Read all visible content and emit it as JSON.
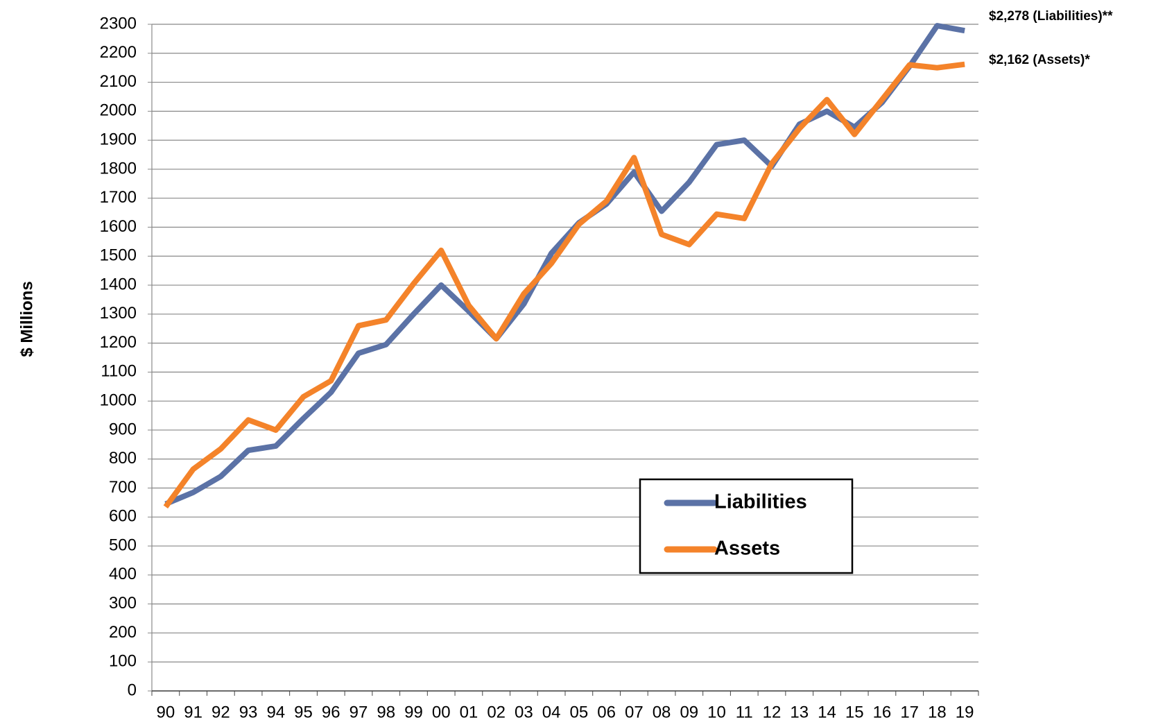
{
  "chart_data": {
    "type": "line",
    "y_label": "$ Millions",
    "categories": [
      "90",
      "91",
      "92",
      "93",
      "94",
      "95",
      "96",
      "97",
      "98",
      "99",
      "00",
      "01",
      "02",
      "03",
      "04",
      "05",
      "06",
      "07",
      "08",
      "09",
      "10",
      "11",
      "12",
      "13",
      "14",
      "15",
      "16",
      "17",
      "18",
      "19"
    ],
    "series": [
      {
        "name": "Liabilities",
        "color": "#5b72a6",
        "values": [
          645,
          685,
          740,
          830,
          845,
          940,
          1030,
          1165,
          1195,
          1300,
          1400,
          1310,
          1215,
          1335,
          1510,
          1615,
          1680,
          1790,
          1655,
          1755,
          1885,
          1900,
          1810,
          1955,
          2000,
          1945,
          2030,
          2155,
          2295,
          2278
        ]
      },
      {
        "name": "Assets",
        "color": "#f4832a",
        "values": [
          635,
          765,
          835,
          935,
          900,
          1015,
          1070,
          1260,
          1280,
          1405,
          1520,
          1330,
          1215,
          1370,
          1475,
          1610,
          1690,
          1840,
          1575,
          1540,
          1645,
          1630,
          1820,
          1940,
          2040,
          1920,
          2040,
          2160,
          2150,
          2162
        ]
      }
    ],
    "annotations": [
      "$2,278 (Liabilities)**",
      "$2,162 (Assets)*"
    ],
    "ylim": [
      0,
      2300
    ],
    "yticks": [
      0,
      100,
      200,
      300,
      400,
      500,
      600,
      700,
      800,
      900,
      1000,
      1100,
      1200,
      1300,
      1400,
      1500,
      1600,
      1700,
      1800,
      1900,
      2000,
      2100,
      2200,
      2300
    ],
    "grid": true
  }
}
